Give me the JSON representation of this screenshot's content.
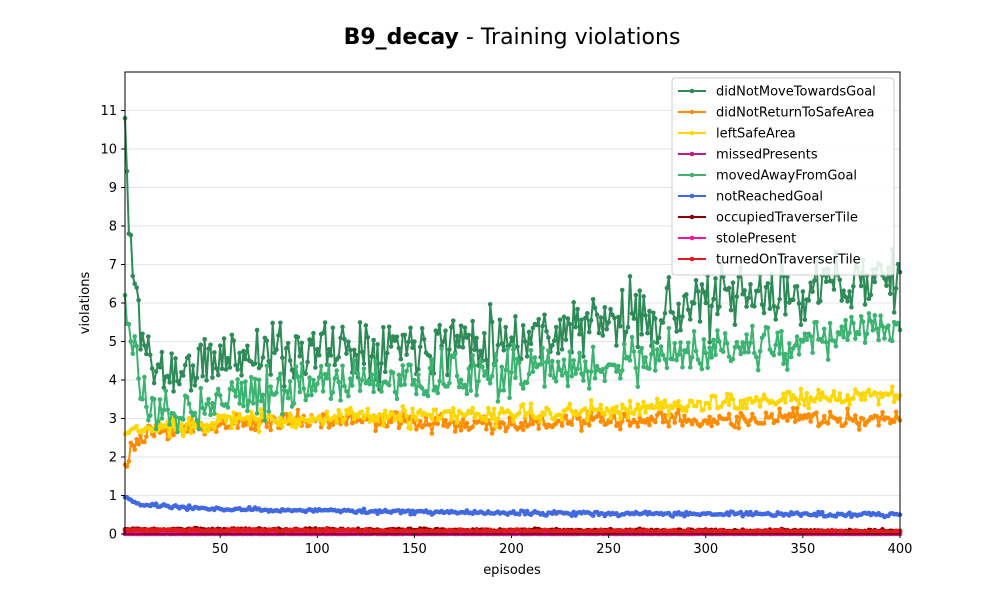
{
  "chart_data": {
    "type": "line",
    "title_bold": "B9_decay",
    "title_rest": " - Training violations",
    "xlabel": "episodes",
    "ylabel": "violations",
    "xlim": [
      1,
      400
    ],
    "ylim": [
      0,
      12
    ],
    "xticks": [
      50,
      100,
      150,
      200,
      250,
      300,
      350,
      400
    ],
    "yticks": [
      0,
      1,
      2,
      3,
      4,
      5,
      6,
      7,
      8,
      9,
      10,
      11
    ],
    "grid": "horizontal",
    "legend_position": "top-right",
    "series": [
      {
        "name": "didNotMoveTowardsGoal",
        "color": "#2e8b57",
        "seed": 11,
        "noise": 0.75,
        "keypoints": [
          [
            1,
            10.8
          ],
          [
            3,
            7.8
          ],
          [
            6,
            6.5
          ],
          [
            10,
            5.2
          ],
          [
            15,
            4.3
          ],
          [
            30,
            4.2
          ],
          [
            60,
            4.7
          ],
          [
            100,
            4.8
          ],
          [
            150,
            5.0
          ],
          [
            200,
            5.1
          ],
          [
            250,
            5.5
          ],
          [
            300,
            6.0
          ],
          [
            350,
            6.3
          ],
          [
            400,
            6.8
          ]
        ]
      },
      {
        "name": "didNotReturnToSafeArea",
        "color": "#ff8c00",
        "seed": 23,
        "noise": 0.22,
        "keypoints": [
          [
            1,
            1.8
          ],
          [
            5,
            2.3
          ],
          [
            15,
            2.6
          ],
          [
            50,
            2.85
          ],
          [
            100,
            3.0
          ],
          [
            150,
            2.9
          ],
          [
            200,
            2.85
          ],
          [
            250,
            2.95
          ],
          [
            300,
            2.95
          ],
          [
            350,
            3.0
          ],
          [
            400,
            2.95
          ]
        ]
      },
      {
        "name": "leftSafeArea",
        "color": "#ffd700",
        "seed": 37,
        "noise": 0.22,
        "keypoints": [
          [
            1,
            2.6
          ],
          [
            10,
            2.7
          ],
          [
            50,
            2.95
          ],
          [
            100,
            3.0
          ],
          [
            150,
            3.05
          ],
          [
            200,
            3.1
          ],
          [
            250,
            3.2
          ],
          [
            300,
            3.4
          ],
          [
            350,
            3.5
          ],
          [
            400,
            3.6
          ]
        ]
      },
      {
        "name": "missedPresents",
        "color": "#c71585",
        "seed": 41,
        "noise": 0.01,
        "keypoints": [
          [
            1,
            0.0
          ],
          [
            400,
            0.0
          ]
        ]
      },
      {
        "name": "movedAwayFromGoal",
        "color": "#3cb371",
        "seed": 53,
        "noise": 0.55,
        "keypoints": [
          [
            1,
            6.2
          ],
          [
            4,
            5.0
          ],
          [
            10,
            3.5
          ],
          [
            20,
            3.0
          ],
          [
            50,
            3.6
          ],
          [
            100,
            3.9
          ],
          [
            150,
            4.0
          ],
          [
            200,
            4.2
          ],
          [
            250,
            4.4
          ],
          [
            300,
            4.7
          ],
          [
            350,
            5.0
          ],
          [
            400,
            5.3
          ]
        ]
      },
      {
        "name": "notReachedGoal",
        "color": "#4169e1",
        "seed": 67,
        "noise": 0.05,
        "keypoints": [
          [
            1,
            0.95
          ],
          [
            10,
            0.75
          ],
          [
            50,
            0.65
          ],
          [
            100,
            0.6
          ],
          [
            200,
            0.55
          ],
          [
            300,
            0.52
          ],
          [
            400,
            0.5
          ]
        ]
      },
      {
        "name": "occupiedTraverserTile",
        "color": "#8b0000",
        "seed": 71,
        "noise": 0.03,
        "keypoints": [
          [
            1,
            0.12
          ],
          [
            400,
            0.08
          ]
        ]
      },
      {
        "name": "stolePresent",
        "color": "#ff1493",
        "seed": 83,
        "noise": 0.01,
        "keypoints": [
          [
            1,
            0.02
          ],
          [
            400,
            0.02
          ]
        ]
      },
      {
        "name": "turnedOnTraverserTile",
        "color": "#e31a1c",
        "seed": 97,
        "noise": 0.03,
        "keypoints": [
          [
            1,
            0.1
          ],
          [
            400,
            0.06
          ]
        ]
      }
    ]
  }
}
